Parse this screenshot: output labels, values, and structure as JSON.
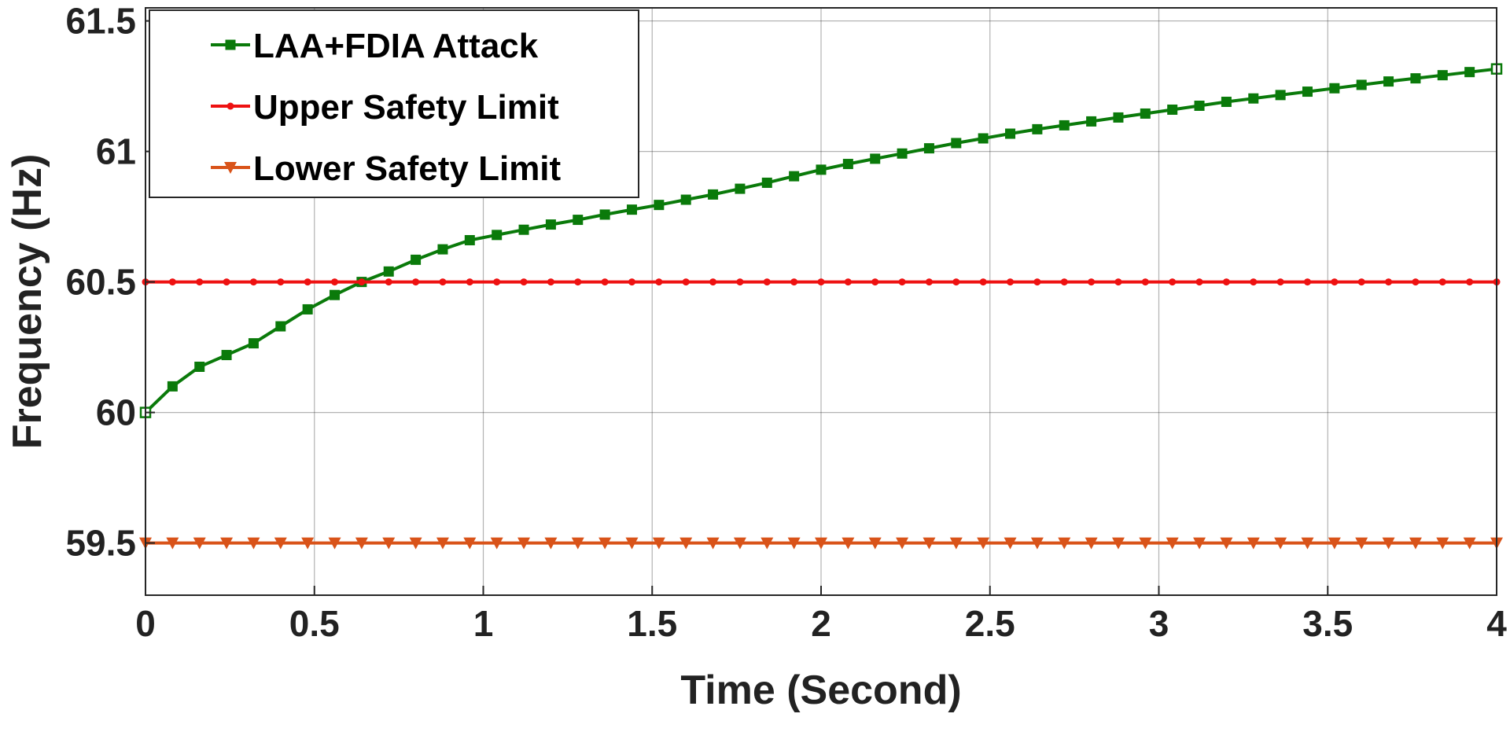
{
  "chart_data": {
    "type": "line",
    "xlabel": "Time (Second)",
    "ylabel": "Frequency (Hz)",
    "xlim": [
      0,
      4
    ],
    "ylim": [
      59.3,
      61.55
    ],
    "xticks": [
      0,
      0.5,
      1,
      1.5,
      2,
      2.5,
      3,
      3.5,
      4
    ],
    "xtick_labels": [
      "0",
      "0.5",
      "1",
      "1.5",
      "2",
      "2.5",
      "3",
      "3.5",
      "4"
    ],
    "yticks": [
      59.5,
      60,
      60.5,
      61,
      61.5
    ],
    "ytick_labels": [
      "59.5",
      "60",
      "60.5",
      "61",
      "61.5"
    ],
    "grid": true,
    "legend_position": "top-left",
    "x": [
      0,
      0.08,
      0.16,
      0.24,
      0.32,
      0.4,
      0.48,
      0.56,
      0.64,
      0.72,
      0.8,
      0.88,
      0.96,
      1.04,
      1.12,
      1.2,
      1.28,
      1.36,
      1.44,
      1.52,
      1.6,
      1.68,
      1.76,
      1.84,
      1.92,
      2.0,
      2.08,
      2.16,
      2.24,
      2.32,
      2.4,
      2.48,
      2.56,
      2.64,
      2.72,
      2.8,
      2.88,
      2.96,
      3.04,
      3.12,
      3.2,
      3.28,
      3.36,
      3.44,
      3.52,
      3.6,
      3.68,
      3.76,
      3.84,
      3.92,
      4.0
    ],
    "series": [
      {
        "name": "LAA+FDIA Attack",
        "color": "#0a7a0a",
        "marker": "square",
        "values": [
          60.0,
          60.1,
          60.175,
          60.22,
          60.265,
          60.33,
          60.395,
          60.45,
          60.5,
          60.54,
          60.585,
          60.625,
          60.66,
          60.68,
          60.7,
          60.72,
          60.738,
          60.758,
          60.777,
          60.795,
          60.815,
          60.835,
          60.857,
          60.88,
          60.905,
          60.93,
          60.952,
          60.972,
          60.992,
          61.012,
          61.032,
          61.05,
          61.068,
          61.085,
          61.1,
          61.115,
          61.13,
          61.145,
          61.16,
          61.175,
          61.19,
          61.203,
          61.216,
          61.229,
          61.242,
          61.255,
          61.268,
          61.28,
          61.292,
          61.304,
          61.316
        ]
      },
      {
        "name": "Upper Safety Limit",
        "color": "#ee1111",
        "marker": "dot",
        "values": [
          60.5,
          60.5,
          60.5,
          60.5,
          60.5,
          60.5,
          60.5,
          60.5,
          60.5,
          60.5,
          60.5,
          60.5,
          60.5,
          60.5,
          60.5,
          60.5,
          60.5,
          60.5,
          60.5,
          60.5,
          60.5,
          60.5,
          60.5,
          60.5,
          60.5,
          60.5,
          60.5,
          60.5,
          60.5,
          60.5,
          60.5,
          60.5,
          60.5,
          60.5,
          60.5,
          60.5,
          60.5,
          60.5,
          60.5,
          60.5,
          60.5,
          60.5,
          60.5,
          60.5,
          60.5,
          60.5,
          60.5,
          60.5,
          60.5,
          60.5,
          60.5
        ]
      },
      {
        "name": "Lower Safety Limit",
        "color": "#d95319",
        "marker": "triangle-down",
        "values": [
          59.5,
          59.5,
          59.5,
          59.5,
          59.5,
          59.5,
          59.5,
          59.5,
          59.5,
          59.5,
          59.5,
          59.5,
          59.5,
          59.5,
          59.5,
          59.5,
          59.5,
          59.5,
          59.5,
          59.5,
          59.5,
          59.5,
          59.5,
          59.5,
          59.5,
          59.5,
          59.5,
          59.5,
          59.5,
          59.5,
          59.5,
          59.5,
          59.5,
          59.5,
          59.5,
          59.5,
          59.5,
          59.5,
          59.5,
          59.5,
          59.5,
          59.5,
          59.5,
          59.5,
          59.5,
          59.5,
          59.5,
          59.5,
          59.5,
          59.5,
          59.5
        ]
      }
    ]
  }
}
